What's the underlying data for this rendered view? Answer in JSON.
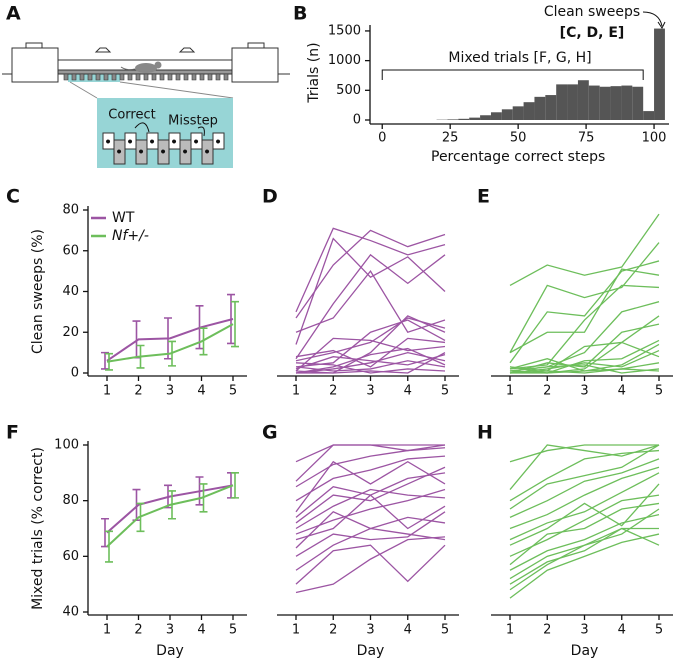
{
  "panel_a": {
    "panel": "A",
    "labels": [
      "Correct",
      "Misstep"
    ]
  },
  "chart_data": [
    {
      "type": "histogram",
      "panel": "B",
      "y_label": "Trials (n)",
      "x_label": "Percentage correct steps",
      "annotations": [
        "Clean sweeps",
        "[C, D, E]",
        "Mixed trials [F, G, H]"
      ],
      "bins": [
        0,
        4,
        8,
        12,
        16,
        20,
        24,
        28,
        32,
        36,
        40,
        44,
        48,
        52,
        56,
        60,
        64,
        68,
        72,
        76,
        80,
        84,
        88,
        92,
        96,
        100,
        104
      ],
      "counts": [
        0,
        0,
        0,
        0,
        0,
        5,
        10,
        20,
        40,
        80,
        130,
        180,
        230,
        300,
        390,
        420,
        600,
        600,
        670,
        580,
        560,
        570,
        580,
        560,
        150,
        1540
      ],
      "color": "#555555",
      "xlim": [
        -4.5,
        105.5
      ],
      "xticks": [
        0,
        25,
        50,
        75,
        100
      ],
      "ylim": [
        0,
        1600
      ],
      "yticks": [
        0,
        500,
        1000,
        1500
      ]
    },
    {
      "type": "line",
      "panel": "C",
      "y_label": "Clean sweeps (%)",
      "categories": [
        1,
        2,
        3,
        4,
        5
      ],
      "ylim": [
        0,
        80
      ],
      "yticks": [
        0,
        20,
        40,
        60,
        80
      ],
      "series": [
        {
          "name": "WT",
          "color": "#9c55a3",
          "values": [
            6,
            16.5,
            17,
            22.5,
            26.5
          ],
          "error": [
            4,
            9,
            10,
            10.5,
            12
          ]
        },
        {
          "name": "Nf+/-",
          "color": "#6dbe5b",
          "values": [
            5.5,
            8,
            9.5,
            15.5,
            24
          ],
          "error": [
            4,
            5.5,
            6,
            6.5,
            11
          ]
        }
      ]
    },
    {
      "type": "multiline",
      "panel": "D",
      "categories": [
        1,
        2,
        3,
        4,
        5
      ],
      "ylim": [
        0,
        80
      ],
      "color": "#9c55a3",
      "series": [
        {
          "values": [
            30,
            71,
            65,
            58,
            63
          ]
        },
        {
          "values": [
            27,
            53,
            70,
            62,
            68
          ]
        },
        {
          "values": [
            14,
            66,
            47,
            57,
            40
          ]
        },
        {
          "values": [
            7,
            34,
            58,
            44,
            58
          ]
        },
        {
          "values": [
            20,
            27,
            50,
            20,
            26
          ]
        },
        {
          "values": [
            6,
            10,
            15,
            27,
            22
          ]
        },
        {
          "values": [
            1,
            17,
            16,
            11,
            13
          ]
        },
        {
          "values": [
            3,
            5,
            20,
            26,
            16
          ]
        },
        {
          "values": [
            1,
            0,
            10,
            28,
            20
          ]
        },
        {
          "values": [
            8,
            11,
            3,
            17,
            15
          ]
        },
        {
          "values": [
            0,
            2,
            5,
            10,
            6
          ]
        },
        {
          "values": [
            3,
            1,
            2,
            6,
            3
          ]
        },
        {
          "values": [
            0,
            0,
            1,
            0,
            10
          ]
        },
        {
          "values": [
            5,
            4,
            0,
            2,
            1
          ]
        },
        {
          "values": [
            2,
            8,
            6,
            4,
            9
          ]
        },
        {
          "values": [
            0,
            3,
            9,
            12,
            4
          ]
        }
      ]
    },
    {
      "type": "multiline",
      "panel": "E",
      "categories": [
        1,
        2,
        3,
        4,
        5
      ],
      "ylim": [
        0,
        80
      ],
      "color": "#6dbe5b",
      "series": [
        {
          "values": [
            43,
            53,
            48,
            52,
            78
          ]
        },
        {
          "values": [
            10,
            43,
            37,
            42,
            64
          ]
        },
        {
          "values": [
            5,
            30,
            28,
            50,
            55
          ]
        },
        {
          "values": [
            10,
            20,
            20,
            51,
            48
          ]
        },
        {
          "values": [
            2,
            4,
            26,
            43,
            42
          ]
        },
        {
          "values": [
            1,
            3,
            10,
            30,
            35
          ]
        },
        {
          "values": [
            3,
            1,
            13,
            15,
            28
          ]
        },
        {
          "values": [
            0,
            5,
            3,
            20,
            24
          ]
        },
        {
          "values": [
            1,
            0,
            6,
            7,
            16
          ]
        },
        {
          "values": [
            2,
            7,
            1,
            4,
            14
          ]
        },
        {
          "values": [
            0,
            2,
            5,
            3,
            11
          ]
        },
        {
          "values": [
            3,
            0,
            2,
            15,
            8
          ]
        },
        {
          "values": [
            0,
            1,
            0,
            2,
            5
          ]
        },
        {
          "values": [
            1,
            3,
            4,
            0,
            2
          ]
        },
        {
          "values": [
            0,
            0,
            1,
            2,
            1
          ]
        }
      ]
    },
    {
      "type": "line",
      "panel": "F",
      "y_label": "Mixed trials (% correct)",
      "x_label": "Day",
      "categories": [
        1,
        2,
        3,
        4,
        5
      ],
      "ylim": [
        40,
        100
      ],
      "yticks": [
        40,
        60,
        80,
        100
      ],
      "series": [
        {
          "name": "WT",
          "color": "#9c55a3",
          "values": [
            68.5,
            78.5,
            81.5,
            83.5,
            85.5
          ],
          "error": [
            5,
            5.5,
            4,
            5,
            4.5
          ]
        },
        {
          "name": "Nf+/-",
          "color": "#6dbe5b",
          "values": [
            63.5,
            74,
            78.5,
            81,
            85.5
          ],
          "error": [
            5.5,
            5,
            5,
            5,
            4.5
          ]
        }
      ]
    },
    {
      "type": "multiline",
      "panel": "G",
      "x_label": "Day",
      "categories": [
        1,
        2,
        3,
        4,
        5
      ],
      "ylim": [
        40,
        100
      ],
      "color": "#9c55a3",
      "series": [
        {
          "values": [
            94,
            100,
            100,
            100,
            100
          ]
        },
        {
          "values": [
            87,
            100,
            100,
            98,
            100
          ]
        },
        {
          "values": [
            85,
            93,
            96,
            98,
            99
          ]
        },
        {
          "values": [
            80,
            88,
            91,
            95,
            96
          ]
        },
        {
          "values": [
            76,
            94,
            86,
            94,
            86
          ]
        },
        {
          "values": [
            74,
            85,
            82,
            88,
            90
          ]
        },
        {
          "values": [
            72,
            82,
            80,
            86,
            92
          ]
        },
        {
          "values": [
            70,
            78,
            84,
            82,
            81
          ]
        },
        {
          "values": [
            68,
            73,
            77,
            80,
            84
          ]
        },
        {
          "values": [
            66,
            70,
            82,
            70,
            78
          ]
        },
        {
          "values": [
            63,
            76,
            70,
            74,
            72
          ]
        },
        {
          "values": [
            60,
            68,
            66,
            67,
            76
          ]
        },
        {
          "values": [
            55,
            64,
            70,
            68,
            66
          ]
        },
        {
          "values": [
            50,
            62,
            64,
            51,
            64
          ]
        },
        {
          "values": [
            47,
            50,
            59,
            66,
            67
          ]
        }
      ]
    },
    {
      "type": "multiline",
      "panel": "H",
      "x_label": "Day",
      "categories": [
        1,
        2,
        3,
        4,
        5
      ],
      "ylim": [
        40,
        100
      ],
      "color": "#6dbe5b",
      "series": [
        {
          "values": [
            94,
            98,
            100,
            100,
            100
          ]
        },
        {
          "values": [
            84,
            100,
            98,
            96,
            100
          ]
        },
        {
          "values": [
            80,
            88,
            95,
            97,
            98
          ]
        },
        {
          "values": [
            77,
            86,
            89,
            92,
            100
          ]
        },
        {
          "values": [
            74,
            80,
            87,
            90,
            95
          ]
        },
        {
          "values": [
            70,
            75,
            82,
            88,
            92
          ]
        },
        {
          "values": [
            66,
            72,
            76,
            83,
            90
          ]
        },
        {
          "values": [
            64,
            70,
            79,
            71,
            86
          ]
        },
        {
          "values": [
            60,
            66,
            73,
            80,
            82
          ]
        },
        {
          "values": [
            57,
            68,
            70,
            77,
            79
          ]
        },
        {
          "values": [
            55,
            62,
            66,
            72,
            75
          ]
        },
        {
          "values": [
            52,
            60,
            64,
            68,
            77
          ]
        },
        {
          "values": [
            48,
            57,
            64,
            70,
            70
          ]
        },
        {
          "values": [
            45,
            55,
            60,
            65,
            68
          ]
        },
        {
          "values": [
            50,
            58,
            62,
            70,
            64
          ]
        }
      ]
    }
  ]
}
